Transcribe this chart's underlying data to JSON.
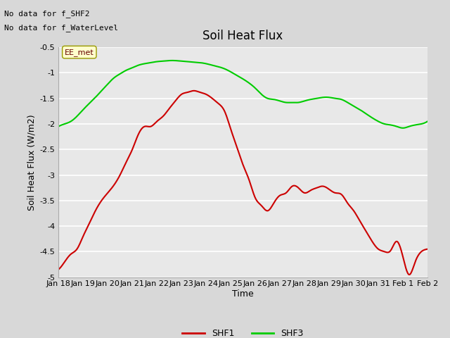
{
  "title": "Soil Heat Flux",
  "ylabel": "Soil Heat Flux (W/m2)",
  "xlabel": "Time",
  "ylim": [
    -5.0,
    -0.5
  ],
  "yticks": [
    -5.0,
    -4.5,
    -4.0,
    -3.5,
    -3.0,
    -2.5,
    -2.0,
    -1.5,
    -1.0,
    -0.5
  ],
  "xtick_labels": [
    "Jan 18",
    "Jan 19",
    "Jan 20",
    "Jan 21",
    "Jan 22",
    "Jan 23",
    "Jan 24",
    "Jan 25",
    "Jan 26",
    "Jan 27",
    "Jan 28",
    "Jan 29",
    "Jan 30",
    "Jan 31",
    "Feb 1",
    "Feb 2"
  ],
  "note1": "No data for f_SHF2",
  "note2": "No data for f_WaterLevel",
  "annotation": "EE_met",
  "shf1_color": "#cc0000",
  "shf3_color": "#00cc00",
  "shf1_x": [
    0,
    0.5,
    1,
    1.5,
    2,
    2.5,
    3,
    3.5,
    4,
    4.5,
    5,
    5.5,
    6,
    6.5,
    7,
    7.5,
    8,
    8.5,
    9,
    9.5,
    10,
    10.5,
    11,
    11.5,
    12,
    12.5,
    13,
    13.5,
    14,
    14.5,
    15,
    15.5,
    16,
    16.5,
    17,
    17.5,
    18,
    18.5,
    19,
    19.5,
    20,
    20.5,
    21,
    21.5,
    22,
    22.5,
    23,
    23.5,
    24,
    24.5,
    25,
    25.5,
    26,
    26.5,
    27,
    27.5,
    28,
    28.5,
    29,
    29.5,
    30
  ],
  "shf1_y": [
    -4.85,
    -4.7,
    -4.55,
    -4.45,
    -4.2,
    -3.95,
    -3.7,
    -3.5,
    -3.35,
    -3.2,
    -3.0,
    -2.75,
    -2.5,
    -2.2,
    -2.05,
    -2.05,
    -1.95,
    -1.85,
    -1.7,
    -1.55,
    -1.42,
    -1.38,
    -1.35,
    -1.38,
    -1.42,
    -1.5,
    -1.6,
    -1.75,
    -2.1,
    -2.45,
    -2.8,
    -3.1,
    -3.45,
    -3.6,
    -3.7,
    -3.55,
    -3.4,
    -3.35,
    -3.22,
    -3.25,
    -3.35,
    -3.3,
    -3.25,
    -3.22,
    -3.28,
    -3.35,
    -3.38,
    -3.55,
    -3.7,
    -3.9,
    -4.1,
    -4.3,
    -4.45,
    -4.5,
    -4.48,
    -4.3,
    -4.6,
    -4.95,
    -4.7,
    -4.5,
    -4.45
  ],
  "shf3_x": [
    0,
    0.5,
    1,
    1.5,
    2,
    2.5,
    3,
    3.5,
    4,
    4.5,
    5,
    5.5,
    6,
    6.5,
    7,
    7.5,
    8,
    8.5,
    9,
    9.5,
    10,
    10.5,
    11,
    11.5,
    12,
    12.5,
    13,
    13.5,
    14,
    14.5,
    15,
    15.5,
    16,
    16.5,
    17,
    17.5,
    18,
    18.5,
    19,
    19.5,
    20,
    20.5,
    21,
    21.5,
    22,
    22.5,
    23,
    23.5,
    24,
    24.5,
    25,
    25.5,
    26,
    26.5,
    27,
    27.5,
    28,
    28.5,
    29,
    29.5,
    30
  ],
  "shf3_y": [
    -2.05,
    -2.0,
    -1.95,
    -1.85,
    -1.72,
    -1.6,
    -1.48,
    -1.35,
    -1.22,
    -1.1,
    -1.02,
    -0.95,
    -0.9,
    -0.85,
    -0.82,
    -0.8,
    -0.78,
    -0.77,
    -0.76,
    -0.76,
    -0.77,
    -0.78,
    -0.79,
    -0.8,
    -0.82,
    -0.85,
    -0.88,
    -0.92,
    -0.98,
    -1.05,
    -1.12,
    -1.2,
    -1.3,
    -1.42,
    -1.5,
    -1.52,
    -1.55,
    -1.58,
    -1.58,
    -1.58,
    -1.55,
    -1.52,
    -1.5,
    -1.48,
    -1.48,
    -1.5,
    -1.52,
    -1.58,
    -1.65,
    -1.72,
    -1.8,
    -1.88,
    -1.95,
    -2.0,
    -2.02,
    -2.05,
    -2.08,
    -2.05,
    -2.02,
    -2.0,
    -1.95
  ]
}
